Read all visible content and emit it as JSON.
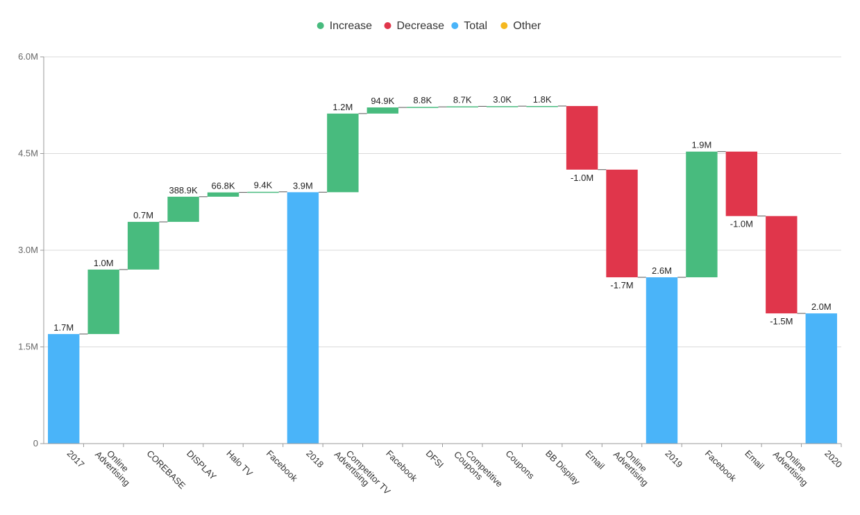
{
  "colors": {
    "increase": "#48bb7e",
    "decrease": "#e0364b",
    "total": "#4ab4f9",
    "other": "#f5b81f",
    "grid": "#d9d9d9",
    "axis": "#999999",
    "connector": "#555555"
  },
  "legend": [
    {
      "key": "increase",
      "label": "Increase"
    },
    {
      "key": "decrease",
      "label": "Decrease"
    },
    {
      "key": "total",
      "label": "Total"
    },
    {
      "key": "other",
      "label": "Other"
    }
  ],
  "chart_data": {
    "type": "bar",
    "subtype": "waterfall",
    "title": "",
    "xlabel": "",
    "ylabel": "",
    "ylim": [
      0,
      6000000
    ],
    "yticks": [
      {
        "value": 0,
        "label": "0"
      },
      {
        "value": 1500000,
        "label": "1.5M"
      },
      {
        "value": 3000000,
        "label": "3.0M"
      },
      {
        "value": 4500000,
        "label": "4.5M"
      },
      {
        "value": 6000000,
        "label": "6.0M"
      }
    ],
    "grid": true,
    "legend_position": "top",
    "bars": [
      {
        "category": [
          "2017"
        ],
        "type": "total",
        "start": 0,
        "end": 1700000,
        "label": "1.7M"
      },
      {
        "category": [
          "Online",
          "Advertising"
        ],
        "type": "increase",
        "start": 1700000,
        "end": 2700000,
        "label": "1.0M"
      },
      {
        "category": [
          "COREBASE"
        ],
        "type": "increase",
        "start": 2700000,
        "end": 3440000,
        "label": "0.7M"
      },
      {
        "category": [
          "DISPLAY"
        ],
        "type": "increase",
        "start": 3440000,
        "end": 3830000,
        "label": "388.9K"
      },
      {
        "category": [
          "Halo TV"
        ],
        "type": "increase",
        "start": 3830000,
        "end": 3897000,
        "label": "66.8K"
      },
      {
        "category": [
          "Facebook"
        ],
        "type": "increase",
        "start": 3897000,
        "end": 3906000,
        "label": "9.4K"
      },
      {
        "category": [
          "2018"
        ],
        "type": "total",
        "start": 0,
        "end": 3900000,
        "label": "3.9M"
      },
      {
        "category": [
          "Competitor TV",
          "Advertising"
        ],
        "type": "increase",
        "start": 3900000,
        "end": 5120000,
        "label": "1.2M"
      },
      {
        "category": [
          "Facebook"
        ],
        "type": "increase",
        "start": 5120000,
        "end": 5215000,
        "label": "94.9K"
      },
      {
        "category": [
          "DFSI"
        ],
        "type": "increase",
        "start": 5215000,
        "end": 5224000,
        "label": "8.8K"
      },
      {
        "category": [
          "Competitive",
          "Coupons"
        ],
        "type": "increase",
        "start": 5224000,
        "end": 5232000,
        "label": "8.7K"
      },
      {
        "category": [
          "Coupons"
        ],
        "type": "increase",
        "start": 5232000,
        "end": 5235000,
        "label": "3.0K"
      },
      {
        "category": [
          "BB Display"
        ],
        "type": "increase",
        "start": 5235000,
        "end": 5237000,
        "label": "1.8K"
      },
      {
        "category": [
          "Email"
        ],
        "type": "decrease",
        "start": 5237000,
        "end": 4250000,
        "label": "-1.0M"
      },
      {
        "category": [
          "Online",
          "Advertising"
        ],
        "type": "decrease",
        "start": 4250000,
        "end": 2580000,
        "label": "-1.7M"
      },
      {
        "category": [
          "2019"
        ],
        "type": "total",
        "start": 0,
        "end": 2580000,
        "label": "2.6M"
      },
      {
        "category": [
          "Facebook"
        ],
        "type": "increase",
        "start": 2580000,
        "end": 4530000,
        "label": "1.9M"
      },
      {
        "category": [
          "Email"
        ],
        "type": "decrease",
        "start": 4530000,
        "end": 3530000,
        "label": "-1.0M"
      },
      {
        "category": [
          "Online",
          "Advertising"
        ],
        "type": "decrease",
        "start": 3530000,
        "end": 2020000,
        "label": "-1.5M"
      },
      {
        "category": [
          "2020"
        ],
        "type": "total",
        "start": 0,
        "end": 2020000,
        "label": "2.0M"
      }
    ]
  }
}
